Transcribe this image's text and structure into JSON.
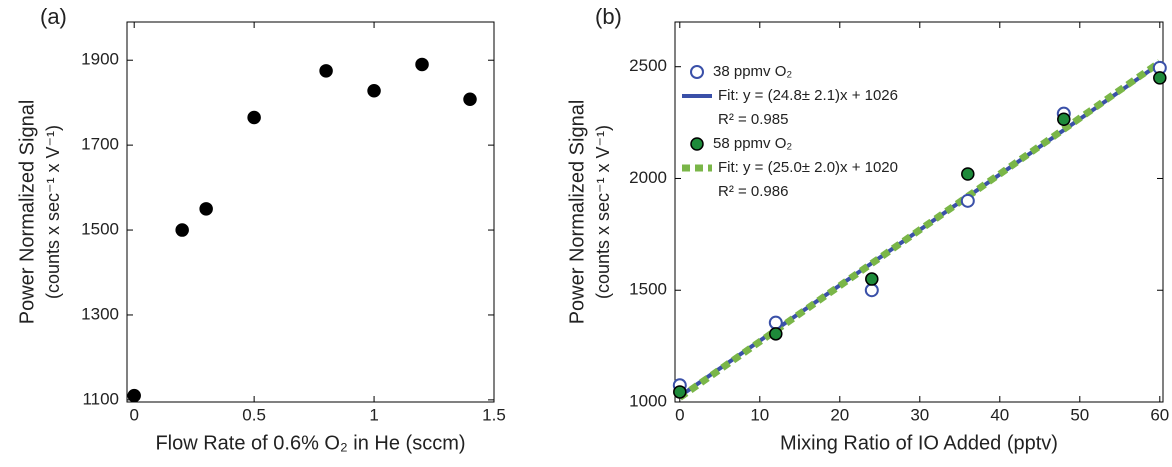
{
  "chart_data": [
    {
      "type": "scatter",
      "panel_label": "(a)",
      "xlabel": "Flow Rate of 0.6% O₂  in He (sccm)",
      "ylabel": [
        "Power Normalized Signal",
        "(counts x sec⁻¹ x V⁻¹)"
      ],
      "xlim": [
        -0.03,
        1.5
      ],
      "ylim": [
        1095,
        1990
      ],
      "xticks": [
        0,
        0.5,
        1,
        1.5
      ],
      "yticks": [
        1100,
        1300,
        1500,
        1700,
        1900
      ],
      "series": [
        {
          "color": "#000000",
          "marker": "filled",
          "x": [
            0,
            0.2,
            0.3,
            0.5,
            0.8,
            1.0,
            1.2,
            1.4
          ],
          "values": [
            1110,
            1500,
            1550,
            1765,
            1875,
            1828,
            1890,
            1808
          ]
        }
      ]
    },
    {
      "type": "scatter",
      "panel_label": "(b)",
      "xlabel": "Mixing Ratio of IO Added (pptv)",
      "ylabel": [
        "Power Normalized Signal",
        "(counts x sec⁻¹ x V⁻¹)"
      ],
      "xlim": [
        -0.6,
        60.4
      ],
      "ylim": [
        1000,
        2700
      ],
      "xticks": [
        0,
        10,
        20,
        30,
        40,
        50,
        60
      ],
      "yticks": [
        1000,
        1500,
        2000,
        2500
      ],
      "annotations": [
        "R² = 0.985",
        "R² = 0.986"
      ],
      "series": [
        {
          "name": "38 ppmv O₂",
          "color": "#3a50a8",
          "marker": "open",
          "x": [
            0,
            12,
            24,
            36,
            48,
            60
          ],
          "values": [
            1075,
            1355,
            1500,
            1900,
            2290,
            2495
          ]
        },
        {
          "name": "Fit: y = (24.8± 2.1)x + 1026",
          "color": "#3a50a8",
          "linestyle": "solid",
          "x": [
            0,
            60
          ],
          "values": [
            1026,
            2514
          ]
        },
        {
          "name": "58 ppmv O₂",
          "color": "#1e8a3a",
          "marker": "filled",
          "x": [
            0,
            12,
            24,
            36,
            48,
            60
          ],
          "values": [
            1045,
            1305,
            1550,
            2020,
            2265,
            2450
          ]
        },
        {
          "name": "Fit: y = (25.0± 2.0)x + 1020",
          "color": "#7ab648",
          "linestyle": "dashed",
          "x": [
            0,
            60
          ],
          "values": [
            1020,
            2520
          ]
        }
      ]
    }
  ]
}
